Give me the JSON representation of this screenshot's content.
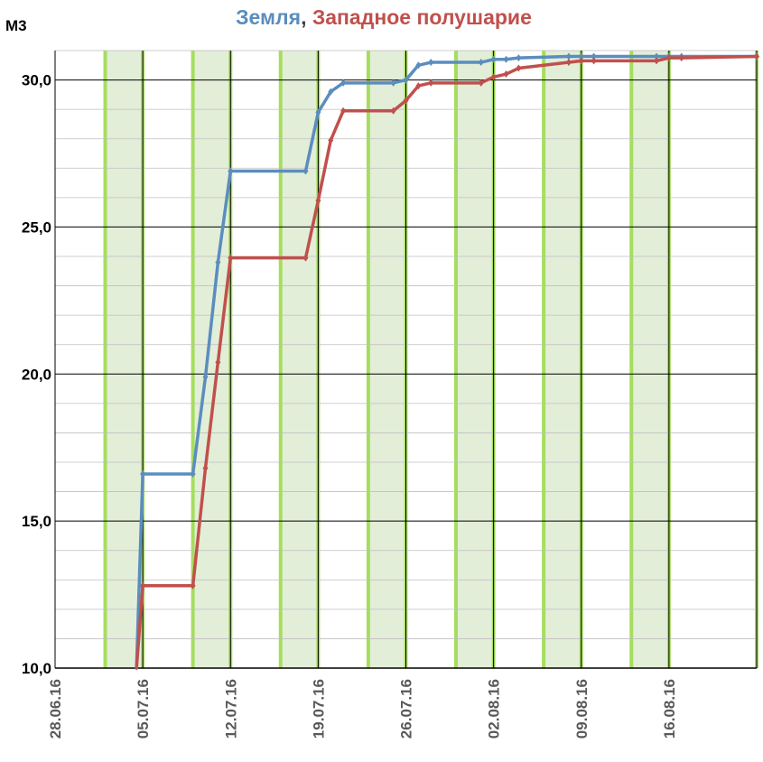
{
  "chart_data": {
    "type": "line",
    "title_parts": [
      {
        "text": "Земля",
        "color": "#5B8DBE"
      },
      {
        "text": ", ",
        "color": "#404040"
      },
      {
        "text": "Западное полушарие",
        "color": "#C0504D"
      }
    ],
    "ylabel": "М3",
    "ylim": [
      10,
      31
    ],
    "y_ticks": [
      10,
      15,
      20,
      25,
      30
    ],
    "y_tick_labels": [
      "10,0",
      "15,0",
      "20,0",
      "25,0",
      "30,0"
    ],
    "x_range": [
      "2016-06-28",
      "2016-08-23"
    ],
    "x_ticks": [
      "2016-06-28",
      "2016-07-05",
      "2016-07-12",
      "2016-07-19",
      "2016-07-26",
      "2016-08-02",
      "2016-08-09",
      "2016-08-16"
    ],
    "x_tick_labels": [
      "28.06.16",
      "05.07.16",
      "12.07.16",
      "19.07.16",
      "26.07.16",
      "02.08.16",
      "09.08.16",
      "16.08.16"
    ],
    "grid": true,
    "legend": "title",
    "shaded_periods": [
      [
        "2016-07-02",
        "2016-07-05"
      ],
      [
        "2016-07-09",
        "2016-07-12"
      ],
      [
        "2016-07-16",
        "2016-07-19"
      ],
      [
        "2016-07-23",
        "2016-07-26"
      ],
      [
        "2016-07-30",
        "2016-08-02"
      ],
      [
        "2016-08-06",
        "2016-08-09"
      ],
      [
        "2016-08-13",
        "2016-08-16"
      ],
      [
        "2016-08-23",
        "2016-08-23"
      ]
    ],
    "period_color": "#E2EED8",
    "period_edge_color": "#A6DD5E",
    "series": [
      {
        "name": "Земля",
        "color": "#5B8DBE",
        "points": [
          [
            "2016-07-04 12:00",
            10.0
          ],
          [
            "2016-07-05",
            16.6
          ],
          [
            "2016-07-09",
            16.6
          ],
          [
            "2016-07-10",
            19.9
          ],
          [
            "2016-07-11",
            23.8
          ],
          [
            "2016-07-12",
            26.9
          ],
          [
            "2016-07-18",
            26.9
          ],
          [
            "2016-07-19",
            28.9
          ],
          [
            "2016-07-20",
            29.6
          ],
          [
            "2016-07-21",
            29.9
          ],
          [
            "2016-07-25",
            29.9
          ],
          [
            "2016-07-26",
            30.0
          ],
          [
            "2016-07-27",
            30.5
          ],
          [
            "2016-07-28",
            30.6
          ],
          [
            "2016-08-01",
            30.6
          ],
          [
            "2016-08-02",
            30.7
          ],
          [
            "2016-08-03",
            30.7
          ],
          [
            "2016-08-04",
            30.75
          ],
          [
            "2016-08-08",
            30.8
          ],
          [
            "2016-08-09",
            30.8
          ],
          [
            "2016-08-10",
            30.8
          ],
          [
            "2016-08-15",
            30.8
          ],
          [
            "2016-08-16",
            30.8
          ],
          [
            "2016-08-17",
            30.8
          ],
          [
            "2016-08-23",
            30.8
          ]
        ]
      },
      {
        "name": "Западное полушарие",
        "color": "#C0504D",
        "points": [
          [
            "2016-07-04 12:00",
            10.0
          ],
          [
            "2016-07-05",
            12.8
          ],
          [
            "2016-07-09",
            12.8
          ],
          [
            "2016-07-10",
            16.8
          ],
          [
            "2016-07-11",
            20.4
          ],
          [
            "2016-07-12",
            23.95
          ],
          [
            "2016-07-18",
            23.95
          ],
          [
            "2016-07-19",
            25.9
          ],
          [
            "2016-07-20",
            27.95
          ],
          [
            "2016-07-21",
            28.95
          ],
          [
            "2016-07-25",
            28.95
          ],
          [
            "2016-07-26",
            29.3
          ],
          [
            "2016-07-27",
            29.8
          ],
          [
            "2016-07-28",
            29.9
          ],
          [
            "2016-08-01",
            29.9
          ],
          [
            "2016-08-02",
            30.1
          ],
          [
            "2016-08-03",
            30.2
          ],
          [
            "2016-08-04",
            30.4
          ],
          [
            "2016-08-08",
            30.6
          ],
          [
            "2016-08-09",
            30.65
          ],
          [
            "2016-08-10",
            30.65
          ],
          [
            "2016-08-15",
            30.65
          ],
          [
            "2016-08-16",
            30.75
          ],
          [
            "2016-08-17",
            30.75
          ],
          [
            "2016-08-23",
            30.8
          ]
        ]
      }
    ]
  }
}
